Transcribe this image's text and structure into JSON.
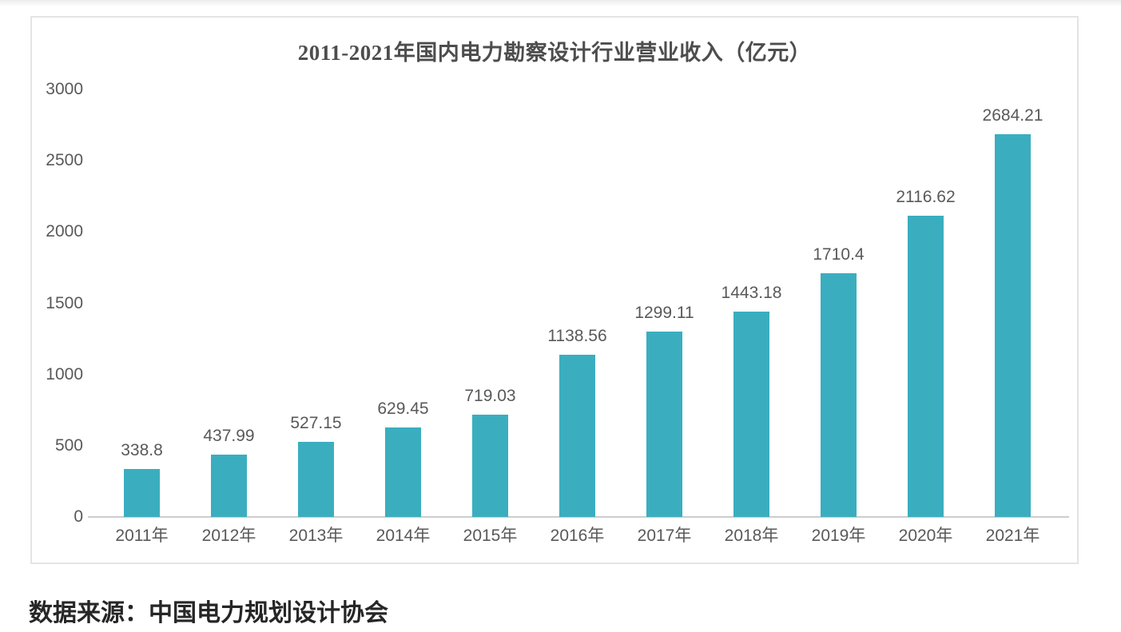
{
  "source_note": "数据来源：中国电力规划设计协会",
  "chart_data": {
    "type": "bar",
    "title": "2011-2021年国内电力勘察设计行业营业收入（亿元）",
    "categories": [
      "2011年",
      "2012年",
      "2013年",
      "2014年",
      "2015年",
      "2016年",
      "2017年",
      "2018年",
      "2019年",
      "2020年",
      "2021年"
    ],
    "values": [
      338.8,
      437.99,
      527.15,
      629.45,
      719.03,
      1138.56,
      1299.11,
      1443.18,
      1710.4,
      2116.62,
      2684.21
    ],
    "xlabel": "",
    "ylabel": "",
    "ylim": [
      0,
      3000
    ],
    "y_ticks": [
      0,
      500,
      1000,
      1500,
      2000,
      2500,
      3000
    ],
    "grid": false,
    "legend": false,
    "data_labels": true,
    "bar_color": "#3aaebf",
    "axis_line_color": "#cdcdcd",
    "label_color": "#595959"
  }
}
